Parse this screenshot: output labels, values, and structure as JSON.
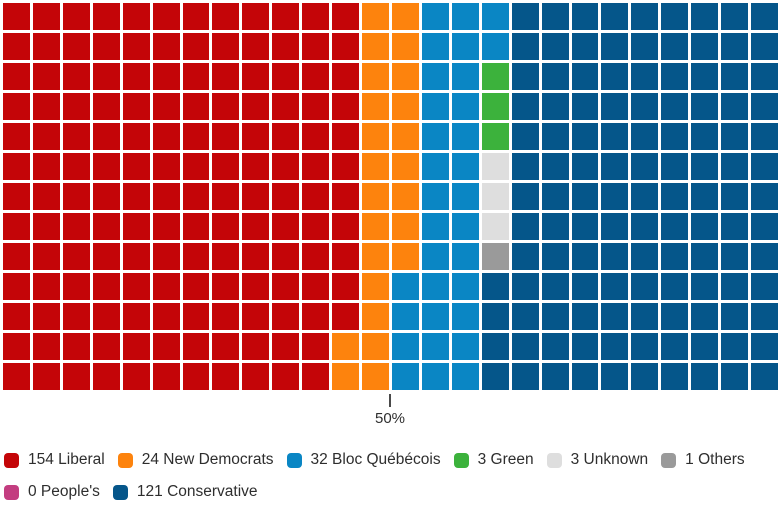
{
  "chart_data": {
    "type": "waffle",
    "title": "",
    "total_seats": 338,
    "grid": {
      "columns": 26,
      "rows": 13,
      "fill_order": "column-major-top-to-bottom-left-to-right"
    },
    "marker": {
      "label": "50%",
      "position_fraction": 0.5
    },
    "parties": [
      {
        "name": "Liberal",
        "seats": 154,
        "color": "#c40508",
        "legend_label": "154 Liberal"
      },
      {
        "name": "New Democrats",
        "seats": 24,
        "color": "#fd830d",
        "legend_label": "24 New Democrats"
      },
      {
        "name": "Bloc Québécois",
        "seats": 32,
        "color": "#0a86c4",
        "legend_label": "32 Bloc Québécois"
      },
      {
        "name": "Green",
        "seats": 3,
        "color": "#3cb23c",
        "legend_label": "3 Green"
      },
      {
        "name": "Unknown",
        "seats": 3,
        "color": "#dedede",
        "legend_label": "3 Unknown"
      },
      {
        "name": "Others",
        "seats": 1,
        "color": "#9a9a9a",
        "legend_label": "1 Others"
      },
      {
        "name": "People's",
        "seats": 0,
        "color": "#c33d80",
        "legend_label": "0 People's"
      },
      {
        "name": "Conservative",
        "seats": 121,
        "color": "#05568a",
        "legend_label": "121 Conservative"
      }
    ],
    "legend_position": "bottom"
  }
}
